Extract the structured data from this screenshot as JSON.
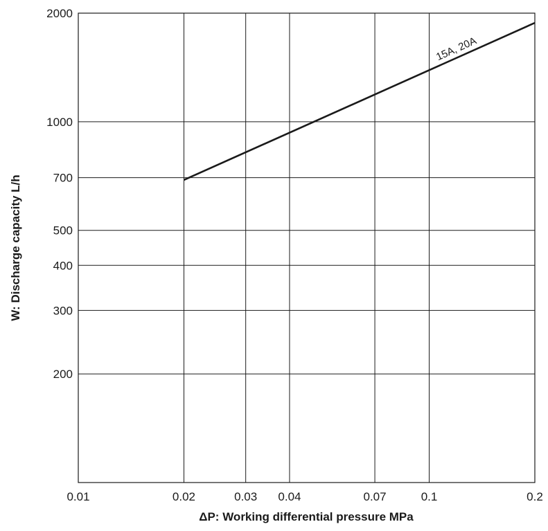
{
  "chart_data": {
    "type": "line",
    "title": "",
    "xlabel": "ΔP: Working differential pressure MPa",
    "ylabel": "W: Discharge capacity L/h",
    "x_scale": "log",
    "y_scale": "log",
    "xlim": [
      0.01,
      0.2
    ],
    "ylim": [
      100,
      2000
    ],
    "grid": true,
    "x_ticks": [
      {
        "value": 0.01,
        "label": "0.01"
      },
      {
        "value": 0.02,
        "label": "0.02"
      },
      {
        "value": 0.03,
        "label": "0.03"
      },
      {
        "value": 0.04,
        "label": "0.04"
      },
      {
        "value": 0.07,
        "label": "0.07"
      },
      {
        "value": 0.1,
        "label": "0.1"
      },
      {
        "value": 0.2,
        "label": "0.2"
      }
    ],
    "y_ticks": [
      {
        "value": 200,
        "label": "200"
      },
      {
        "value": 300,
        "label": "300"
      },
      {
        "value": 400,
        "label": "400"
      },
      {
        "value": 500,
        "label": "500"
      },
      {
        "value": 700,
        "label": "700"
      },
      {
        "value": 1000,
        "label": "1000"
      },
      {
        "value": 2000,
        "label": "2000"
      }
    ],
    "series": [
      {
        "name": "15A, 20A",
        "color": "#1a1a1a",
        "x": [
          0.02,
          0.2
        ],
        "y": [
          690,
          1880
        ]
      }
    ]
  }
}
